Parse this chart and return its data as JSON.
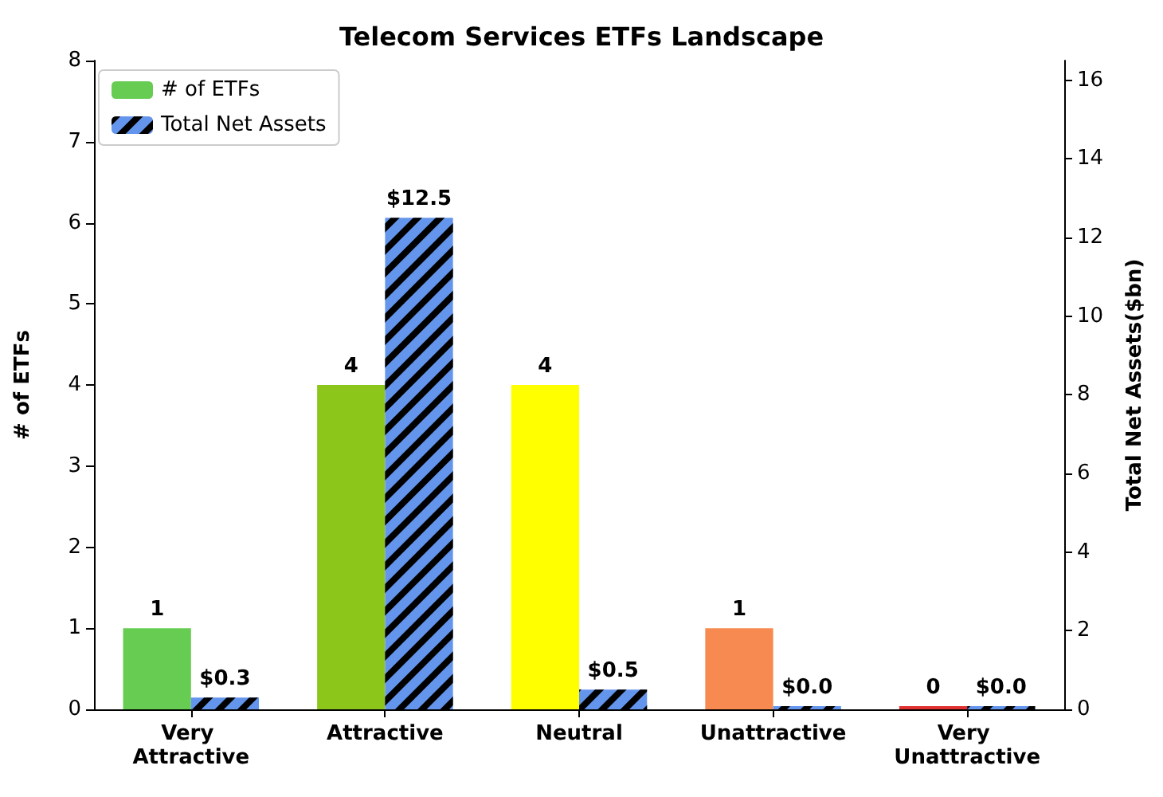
{
  "chart_data": {
    "type": "bar",
    "title": "Telecom Services ETFs Landscape",
    "ylabel": "# of ETFs",
    "y2label": "Total Net Assets($bn)",
    "categories": [
      "Very Attractive",
      "Attractive",
      "Neutral",
      "Unattractive",
      "Very Unattractive"
    ],
    "series": [
      {
        "name": "# of ETFs",
        "color": "#66cc52",
        "colors": [
          "#66cc52",
          "#8cc61a",
          "#ffff00",
          "#f68a50",
          "#e03030"
        ],
        "values": [
          1,
          4,
          4,
          1,
          0
        ],
        "value_labels": [
          "1",
          "4",
          "4",
          "1",
          "0"
        ]
      },
      {
        "name": "Total Net Assets",
        "color": "#6495ed",
        "axis": "y2",
        "values": [
          0.3,
          12.5,
          0.5,
          0.0,
          0.0
        ],
        "value_labels": [
          "$0.3",
          "$12.5",
          "$0.5",
          "$0.0",
          "$0.0"
        ]
      }
    ],
    "ylim": [
      0,
      8
    ],
    "yticks": [
      0,
      1,
      2,
      3,
      4,
      5,
      6,
      7,
      8
    ],
    "y2lim": [
      0,
      16.5
    ],
    "y2ticks": [
      0,
      2,
      4,
      6,
      8,
      10,
      12,
      14,
      16
    ],
    "grid": false,
    "legend": "top left"
  }
}
